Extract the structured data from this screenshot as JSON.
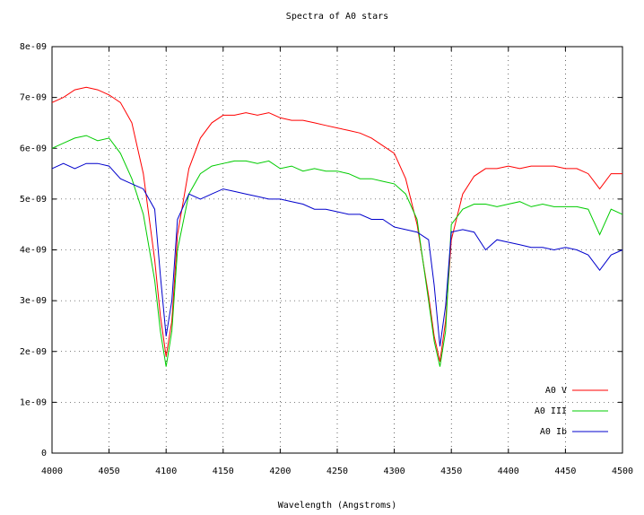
{
  "chart_data": {
    "type": "line",
    "title": "Spectra of A0 stars",
    "x_label": "Wavelength (Angstroms)",
    "x": [
      4000,
      4010,
      4020,
      4030,
      4040,
      4050,
      4060,
      4070,
      4080,
      4090,
      4095,
      4100,
      4105,
      4110,
      4120,
      4130,
      4140,
      4150,
      4160,
      4170,
      4180,
      4190,
      4200,
      4210,
      4220,
      4230,
      4240,
      4250,
      4260,
      4270,
      4280,
      4290,
      4300,
      4310,
      4320,
      4330,
      4335,
      4340,
      4345,
      4350,
      4360,
      4370,
      4380,
      4390,
      4400,
      4410,
      4420,
      4430,
      4440,
      4450,
      4460,
      4470,
      4480,
      4490,
      4500
    ],
    "series": [
      {
        "name": "A0 V",
        "color": "#ff0000",
        "values": [
          6.9e-09,
          7e-09,
          7.15e-09,
          7.2e-09,
          7.15e-09,
          7.05e-09,
          6.9e-09,
          6.5e-09,
          5.5e-09,
          3.8e-09,
          2.7e-09,
          1.9e-09,
          2.6e-09,
          4.3e-09,
          5.6e-09,
          6.2e-09,
          6.5e-09,
          6.65e-09,
          6.65e-09,
          6.7e-09,
          6.65e-09,
          6.7e-09,
          6.6e-09,
          6.55e-09,
          6.55e-09,
          6.5e-09,
          6.45e-09,
          6.4e-09,
          6.35e-09,
          6.3e-09,
          6.2e-09,
          6.05e-09,
          5.9e-09,
          5.4e-09,
          4.5e-09,
          3.1e-09,
          2.3e-09,
          1.8e-09,
          2.6e-09,
          4.2e-09,
          5.1e-09,
          5.45e-09,
          5.6e-09,
          5.6e-09,
          5.65e-09,
          5.6e-09,
          5.65e-09,
          5.65e-09,
          5.65e-09,
          5.6e-09,
          5.6e-09,
          5.5e-09,
          5.2e-09,
          5.5e-09,
          5.5e-09
        ]
      },
      {
        "name": "A0 III",
        "color": "#00cc00",
        "values": [
          6e-09,
          6.1e-09,
          6.2e-09,
          6.25e-09,
          6.15e-09,
          6.2e-09,
          5.9e-09,
          5.4e-09,
          4.7e-09,
          3.4e-09,
          2.4e-09,
          1.7e-09,
          2.4e-09,
          4e-09,
          5.1e-09,
          5.5e-09,
          5.65e-09,
          5.7e-09,
          5.75e-09,
          5.75e-09,
          5.7e-09,
          5.75e-09,
          5.6e-09,
          5.65e-09,
          5.55e-09,
          5.6e-09,
          5.55e-09,
          5.55e-09,
          5.5e-09,
          5.4e-09,
          5.4e-09,
          5.35e-09,
          5.3e-09,
          5.1e-09,
          4.6e-09,
          3e-09,
          2.2e-09,
          1.7e-09,
          2.4e-09,
          4.5e-09,
          4.8e-09,
          4.9e-09,
          4.9e-09,
          4.85e-09,
          4.9e-09,
          4.95e-09,
          4.85e-09,
          4.9e-09,
          4.85e-09,
          4.85e-09,
          4.85e-09,
          4.8e-09,
          4.3e-09,
          4.8e-09,
          4.7e-09
        ]
      },
      {
        "name": "A0 Ib",
        "color": "#0000cc",
        "values": [
          5.6e-09,
          5.7e-09,
          5.6e-09,
          5.7e-09,
          5.7e-09,
          5.65e-09,
          5.4e-09,
          5.3e-09,
          5.2e-09,
          4.8e-09,
          3.5e-09,
          2.3e-09,
          3e-09,
          4.6e-09,
          5.1e-09,
          5e-09,
          5.1e-09,
          5.2e-09,
          5.15e-09,
          5.1e-09,
          5.05e-09,
          5e-09,
          5e-09,
          4.95e-09,
          4.9e-09,
          4.8e-09,
          4.8e-09,
          4.75e-09,
          4.7e-09,
          4.7e-09,
          4.6e-09,
          4.6e-09,
          4.45e-09,
          4.4e-09,
          4.35e-09,
          4.2e-09,
          3.3e-09,
          2.1e-09,
          2.9e-09,
          4.35e-09,
          4.4e-09,
          4.35e-09,
          4e-09,
          4.2e-09,
          4.15e-09,
          4.1e-09,
          4.05e-09,
          4.05e-09,
          4e-09,
          4.05e-09,
          4e-09,
          3.9e-09,
          3.6e-09,
          3.9e-09,
          4e-09
        ]
      }
    ],
    "xlim": [
      4000,
      4500
    ],
    "xticks": [
      4000,
      4050,
      4100,
      4150,
      4200,
      4250,
      4300,
      4350,
      4400,
      4450,
      4500
    ],
    "ylim": [
      0,
      8e-09
    ],
    "yticks": [
      0,
      {
        "value": 1e-09,
        "label": "1e-09"
      },
      {
        "value": 2e-09,
        "label": "2e-09"
      },
      {
        "value": 3e-09,
        "label": "3e-09"
      },
      {
        "value": 4e-09,
        "label": "4e-09"
      },
      {
        "value": 5e-09,
        "label": "5e-09"
      },
      {
        "value": 6e-09,
        "label": "6e-09"
      },
      {
        "value": 7e-09,
        "label": "7e-09"
      },
      {
        "value": 8e-09,
        "label": "8e-09"
      }
    ],
    "grid": true,
    "legend_position": "bottom-right"
  }
}
